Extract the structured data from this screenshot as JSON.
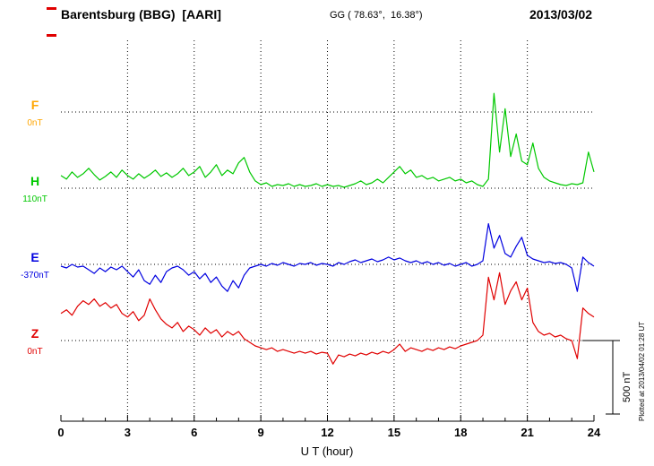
{
  "header": {
    "station": "Barentsburg (BBG)  [AARI]",
    "coords": "GG ( 78.63°,  16.38°)",
    "date": "2013/03/02"
  },
  "axis": {
    "xlabel": "U T (hour)",
    "ticks": [
      0,
      3,
      6,
      9,
      12,
      15,
      18,
      21,
      24
    ]
  },
  "scale_bar": {
    "label": "500 nT"
  },
  "footer": {
    "plotted_note": "Plotted at 2013/04/02 01:28 UT"
  },
  "components": [
    {
      "label": "F",
      "baseline_label": "0nT",
      "color": "#FFA500"
    },
    {
      "label": "H",
      "baseline_label": "110nT",
      "color": "#00C800"
    },
    {
      "label": "E",
      "baseline_label": "-370nT",
      "color": "#0000E0"
    },
    {
      "label": "Z",
      "baseline_label": "0nT",
      "color": "#E00000"
    }
  ],
  "chart_data": {
    "type": "line",
    "title": "Barentsburg (BBG) [AARI] magnetogram 2013/03/02",
    "xlabel": "U T (hour)",
    "ylabel": "nT",
    "x_range": [
      0,
      24
    ],
    "x_start": 0,
    "x_step": 0.25,
    "grid": "dotted",
    "scale_bar_nT": 500,
    "series": [
      {
        "name": "F",
        "baseline_nT": 0,
        "color": "#FFA500",
        "values": []
      },
      {
        "name": "H",
        "baseline_nT": 110,
        "color": "#00C800",
        "values": [
          194,
          170,
          218,
          182,
          206,
          242,
          200,
          164,
          188,
          218,
          182,
          230,
          194,
          170,
          206,
          176,
          200,
          230,
          188,
          212,
          182,
          206,
          242,
          194,
          218,
          254,
          182,
          218,
          266,
          194,
          230,
          206,
          278,
          314,
          218,
          158,
          134,
          146,
          122,
          134,
          128,
          140,
          122,
          134,
          122,
          128,
          140,
          122,
          134,
          122,
          128,
          116,
          128,
          140,
          158,
          134,
          146,
          170,
          146,
          182,
          218,
          254,
          206,
          230,
          182,
          194,
          170,
          182,
          158,
          170,
          182,
          158,
          170,
          146,
          158,
          134,
          122,
          170,
          740,
          350,
          638,
          320,
          470,
          290,
          266,
          410,
          242,
          182,
          158,
          146,
          134,
          128,
          140,
          134,
          146,
          350,
          218
        ]
      },
      {
        "name": "E",
        "baseline_nT": -370,
        "color": "#0000E0",
        "values": [
          -382,
          -394,
          -370,
          -388,
          -382,
          -406,
          -430,
          -394,
          -418,
          -388,
          -406,
          -382,
          -418,
          -454,
          -406,
          -478,
          -502,
          -442,
          -490,
          -418,
          -394,
          -382,
          -406,
          -442,
          -418,
          -466,
          -430,
          -490,
          -454,
          -514,
          -550,
          -478,
          -526,
          -442,
          -394,
          -382,
          -370,
          -382,
          -364,
          -376,
          -358,
          -370,
          -382,
          -364,
          -370,
          -358,
          -376,
          -364,
          -370,
          -382,
          -358,
          -370,
          -352,
          -340,
          -358,
          -346,
          -334,
          -352,
          -340,
          -322,
          -340,
          -328,
          -346,
          -358,
          -346,
          -364,
          -352,
          -370,
          -358,
          -376,
          -364,
          -382,
          -370,
          -358,
          -382,
          -370,
          -346,
          -100,
          -262,
          -178,
          -298,
          -322,
          -250,
          -190,
          -310,
          -334,
          -346,
          -358,
          -352,
          -364,
          -358,
          -370,
          -394,
          -550,
          -322,
          -358,
          -382
        ]
      },
      {
        "name": "Z",
        "baseline_nT": 0,
        "color": "#E00000",
        "values": [
          180,
          204,
          168,
          228,
          264,
          240,
          276,
          228,
          252,
          216,
          240,
          180,
          156,
          192,
          132,
          168,
          276,
          204,
          144,
          108,
          84,
          120,
          60,
          96,
          72,
          36,
          84,
          48,
          72,
          24,
          60,
          36,
          60,
          12,
          -12,
          -36,
          -48,
          -60,
          -48,
          -72,
          -60,
          -72,
          -84,
          -72,
          -84,
          -72,
          -90,
          -78,
          -84,
          -156,
          -96,
          -108,
          -90,
          -102,
          -84,
          -96,
          -78,
          -90,
          -72,
          -84,
          -60,
          -24,
          -72,
          -48,
          -60,
          -72,
          -54,
          -66,
          -48,
          -60,
          -42,
          -54,
          -36,
          -24,
          -12,
          0,
          36,
          420,
          270,
          450,
          240,
          330,
          390,
          270,
          348,
          120,
          60,
          36,
          48,
          24,
          36,
          12,
          0,
          -120,
          216,
          180,
          156
        ]
      }
    ]
  }
}
